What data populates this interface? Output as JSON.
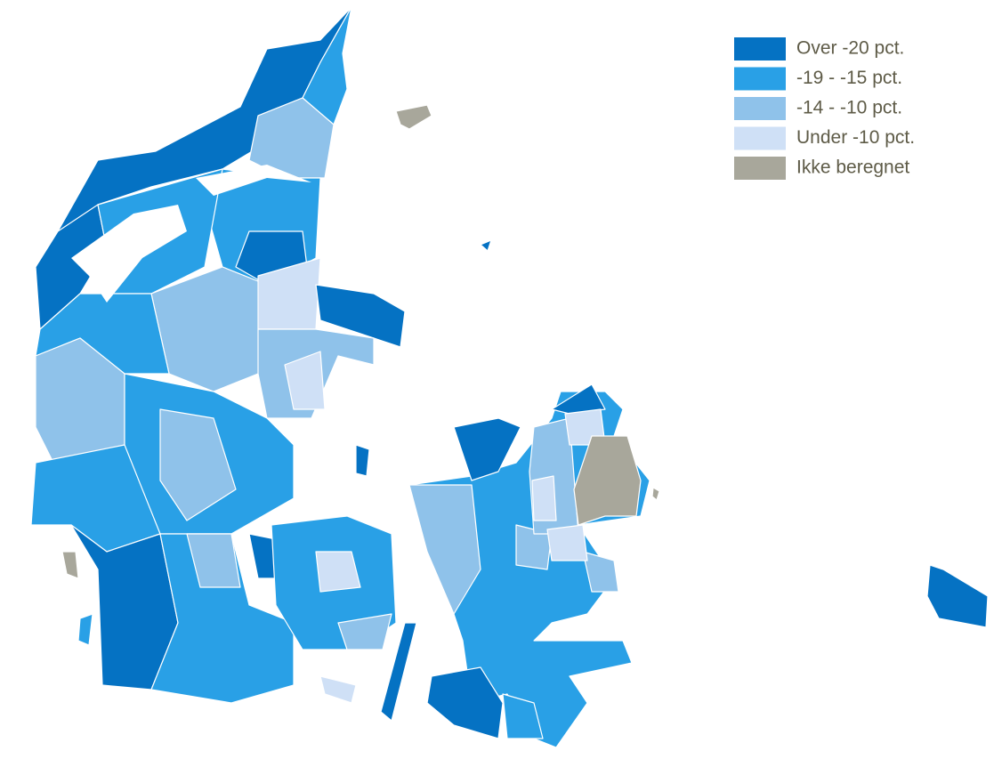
{
  "legend": {
    "items": [
      {
        "label": "Over -20 pct.",
        "color": "#0572c3"
      },
      {
        "label": "-19 - -15 pct.",
        "color": "#29a0e6"
      },
      {
        "label": "-14 - -10 pct.",
        "color": "#8fc2ea"
      },
      {
        "label": "Under -10 pct.",
        "color": "#cfe0f6"
      },
      {
        "label": "Ikke beregnet",
        "color": "#a8a79b"
      }
    ]
  }
}
